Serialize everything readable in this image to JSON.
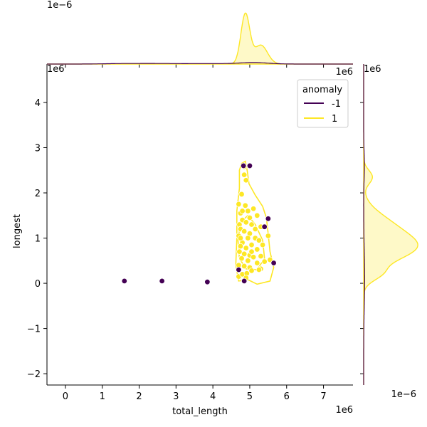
{
  "chart_data": {
    "type": "scatter",
    "xlabel": "total_length",
    "ylabel": "longest",
    "xlim": [
      -0.5,
      7.8
    ],
    "ylim": [
      -2.25,
      4.85
    ],
    "xticks": [
      "0",
      "1",
      "2",
      "3",
      "4",
      "5",
      "6",
      "7"
    ],
    "yticks": [
      "−2",
      "−1",
      "0",
      "1",
      "2",
      "3",
      "4"
    ],
    "x_offset": "1e6",
    "y_offset": "1e6",
    "main_top_offset": "1e6",
    "top_marginal_offset": "1e−6",
    "right_marginal_offset": "1e−6",
    "right_marginal_top_offset": "1e6",
    "legend": {
      "title": "anomaly",
      "entries": [
        {
          "label": "-1",
          "color": "#440154"
        },
        {
          "label": "1",
          "color": "#fde725"
        }
      ],
      "placement": "top-right"
    },
    "series": [
      {
        "name": "-1",
        "color": "#440154",
        "points": [
          [
            1.6,
            0.05
          ],
          [
            2.62,
            0.05
          ],
          [
            3.85,
            0.03
          ],
          [
            4.83,
            2.6
          ],
          [
            5.0,
            2.6
          ],
          [
            5.5,
            1.43
          ],
          [
            5.4,
            1.25
          ],
          [
            5.65,
            0.45
          ],
          [
            4.7,
            0.3
          ],
          [
            4.85,
            0.05
          ]
        ]
      },
      {
        "name": "1",
        "color": "#fde725",
        "points": [
          [
            4.85,
            2.4
          ],
          [
            4.9,
            2.28
          ],
          [
            4.85,
            2.58
          ],
          [
            4.78,
            1.97
          ],
          [
            4.7,
            1.75
          ],
          [
            4.88,
            1.72
          ],
          [
            4.95,
            1.6
          ],
          [
            5.1,
            1.65
          ],
          [
            5.2,
            1.5
          ],
          [
            4.75,
            1.55
          ],
          [
            4.8,
            1.4
          ],
          [
            4.72,
            1.3
          ],
          [
            5.0,
            1.45
          ],
          [
            4.9,
            1.35
          ],
          [
            5.05,
            1.3
          ],
          [
            5.3,
            1.25
          ],
          [
            4.75,
            1.2
          ],
          [
            4.85,
            1.15
          ],
          [
            5.0,
            1.1
          ],
          [
            4.7,
            1.05
          ],
          [
            4.95,
            1.0
          ],
          [
            5.15,
            1.0
          ],
          [
            5.25,
            0.95
          ],
          [
            4.8,
            0.9
          ],
          [
            4.75,
            0.82
          ],
          [
            5.05,
            0.85
          ],
          [
            5.35,
            0.85
          ],
          [
            4.9,
            0.78
          ],
          [
            5.2,
            0.75
          ],
          [
            4.72,
            0.7
          ],
          [
            4.85,
            0.65
          ],
          [
            5.0,
            0.62
          ],
          [
            5.1,
            0.58
          ],
          [
            5.3,
            0.6
          ],
          [
            4.78,
            0.55
          ],
          [
            4.95,
            0.5
          ],
          [
            5.2,
            0.45
          ],
          [
            5.4,
            0.48
          ],
          [
            4.7,
            0.4
          ],
          [
            4.85,
            0.38
          ],
          [
            5.0,
            0.35
          ],
          [
            5.3,
            0.32
          ],
          [
            5.55,
            0.52
          ],
          [
            5.5,
            1.05
          ],
          [
            4.7,
            0.15
          ],
          [
            4.8,
            0.2
          ],
          [
            4.92,
            0.22
          ],
          [
            5.05,
            0.28
          ],
          [
            5.25,
            0.3
          ],
          [
            4.9,
            0.12
          ],
          [
            4.75,
            1.0
          ],
          [
            5.15,
            1.2
          ],
          [
            5.05,
            0.7
          ],
          [
            4.8,
            1.6
          ]
        ]
      }
    ]
  }
}
